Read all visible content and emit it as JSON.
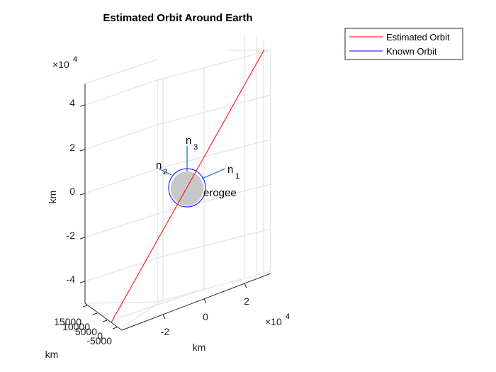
{
  "chart_data": {
    "type": "line",
    "title": "Estimated Orbit Around Earth",
    "xlabel": "km",
    "ylabel": "km",
    "zlabel": "km",
    "exponent_base": "×10",
    "exponent_power": "4",
    "x_ticks": [
      "-2",
      "0",
      "2"
    ],
    "y_ticks": [
      "15000",
      "10000",
      "5000",
      "0",
      "-5000"
    ],
    "z_ticks": [
      "4",
      "2",
      "0",
      "-2",
      "-4"
    ],
    "grid": true,
    "legend_position": "top-right",
    "series": [
      {
        "name": "Estimated Orbit",
        "color": "#ff0000"
      },
      {
        "name": "Known Orbit",
        "color": "#0000ff"
      }
    ],
    "vectors": [
      {
        "base": "n",
        "sub": "1",
        "color": "#0072bd"
      },
      {
        "base": "n",
        "sub": "2",
        "color": "#0072bd"
      },
      {
        "base": "n",
        "sub": "3",
        "color": "#0072bd"
      }
    ],
    "annotations": [
      "erogee"
    ],
    "earth_color": "#c8c8c8"
  }
}
